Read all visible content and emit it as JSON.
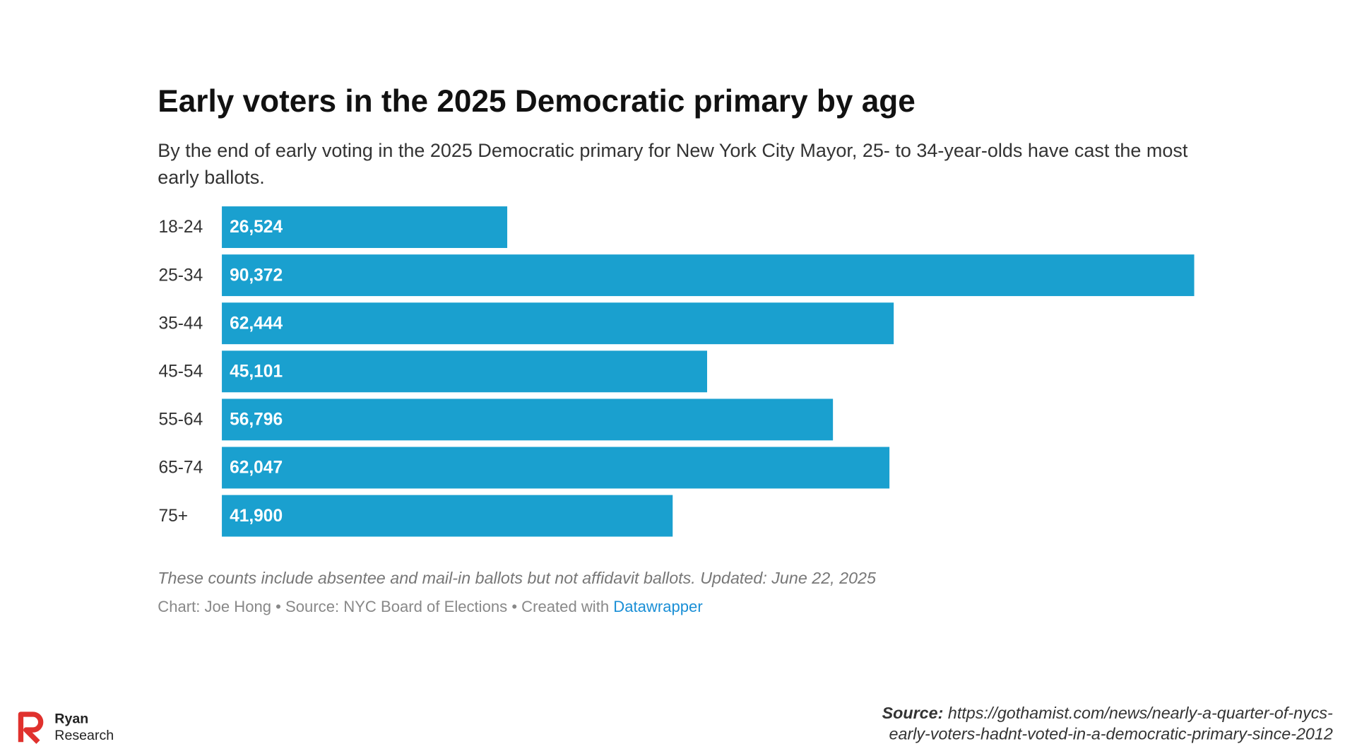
{
  "chart_data": {
    "type": "bar",
    "orientation": "horizontal",
    "title": "Early voters in the 2025 Democratic primary by age",
    "subtitle": "By the end of early voting in the 2025 Democratic primary for New York City Mayor, 25- to 34-year-olds have cast the most early ballots.",
    "categories": [
      "18-24",
      "25-34",
      "35-44",
      "45-54",
      "55-64",
      "65-74",
      "75+"
    ],
    "values": [
      26524,
      90372,
      62444,
      45101,
      56796,
      62047,
      41900
    ],
    "value_labels": [
      "26,524",
      "90,372",
      "62,444",
      "45,101",
      "56,796",
      "62,047",
      "41,900"
    ],
    "color": "#1aa0cf",
    "note": "These counts include absentee and mail-in ballots but not affidavit ballots. Updated: June 22, 2025",
    "credit": "Chart: Joe Hong • Source: NYC Board of Elections • Created with",
    "credit_link": "Datawrapper"
  },
  "footer": {
    "logo_line1": "Ryan",
    "logo_line2": "Research",
    "source_label": "Source:",
    "source_url": "https://gothamist.com/news/nearly-a-quarter-of-nycs-early-voters-hadnt-voted-in-a-democratic-primary-since-2012"
  }
}
